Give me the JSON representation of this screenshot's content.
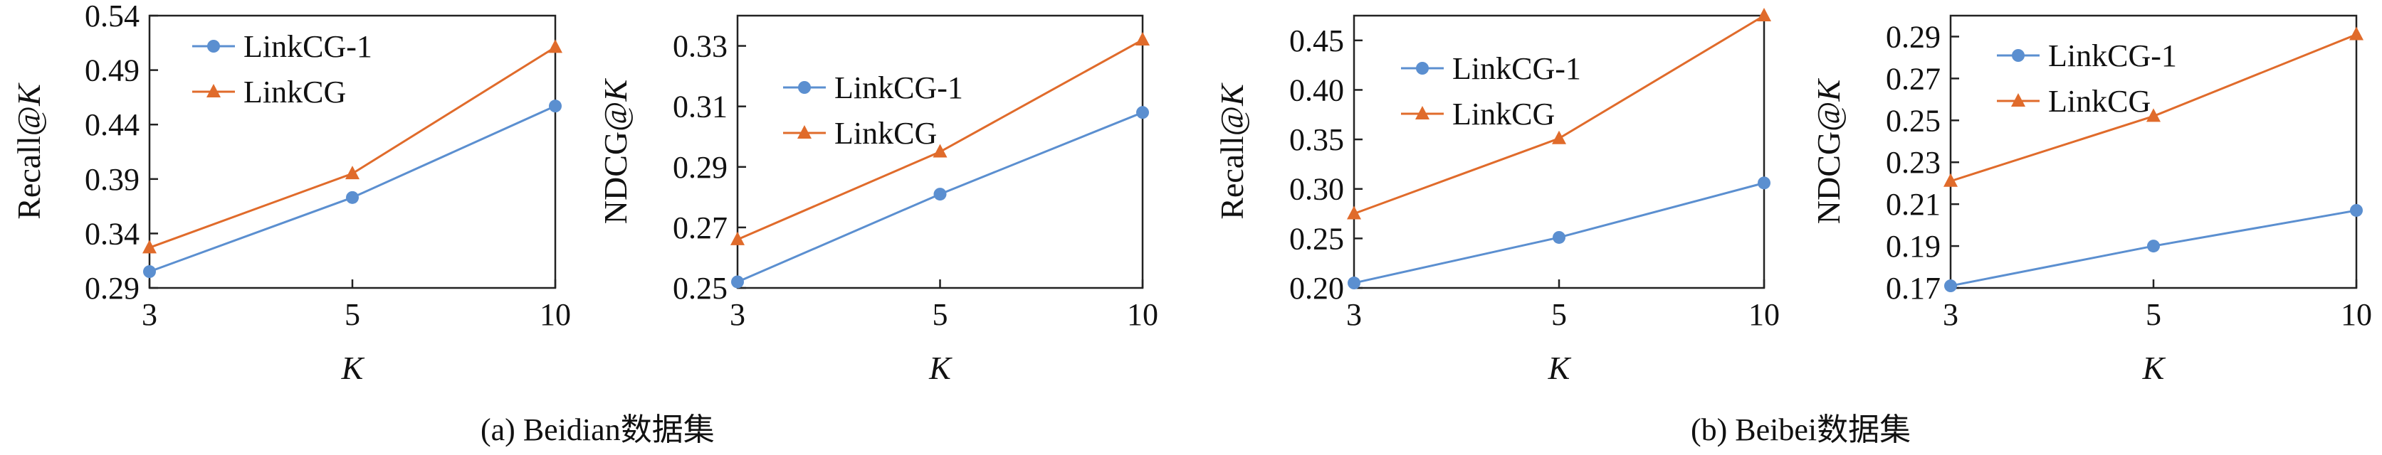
{
  "colors": {
    "series_1": "#5b8fd0",
    "series_2": "#e06b2b",
    "axis": "#222222"
  },
  "captions": {
    "a": "(a)  Beidian数据集",
    "b": "(b)  Beibei数据集"
  },
  "chart_data": [
    {
      "type": "line",
      "x": [
        "3",
        "5",
        "10"
      ],
      "xlabel": "K",
      "ylabel": "Recall@K",
      "ylim": [
        0.29,
        0.54
      ],
      "yticks": [
        "0.29",
        "0.34",
        "0.39",
        "0.44",
        "0.49",
        "0.54"
      ],
      "legend": "top-left",
      "series": [
        {
          "name": "LinkCG-1",
          "marker": "circle",
          "values": [
            0.305,
            0.373,
            0.457
          ]
        },
        {
          "name": "LinkCG",
          "marker": "triangle",
          "values": [
            0.327,
            0.395,
            0.511
          ]
        }
      ]
    },
    {
      "type": "line",
      "x": [
        "3",
        "5",
        "10"
      ],
      "xlabel": "K",
      "ylabel": "NDCG@K",
      "ylim": [
        0.25,
        0.34
      ],
      "yticks": [
        "0.25",
        "0.27",
        "0.29",
        "0.31",
        "0.33"
      ],
      "legend": "center-left",
      "series": [
        {
          "name": "LinkCG-1",
          "marker": "circle",
          "values": [
            0.252,
            0.281,
            0.308
          ]
        },
        {
          "name": "LinkCG",
          "marker": "triangle",
          "values": [
            0.266,
            0.295,
            0.332
          ]
        }
      ]
    },
    {
      "type": "line",
      "x": [
        "3",
        "5",
        "10"
      ],
      "xlabel": "K",
      "ylabel": "Recall@K",
      "ylim": [
        0.2,
        0.475
      ],
      "yticks": [
        "0.20",
        "0.25",
        "0.30",
        "0.35",
        "0.40",
        "0.45"
      ],
      "legend": "top-left",
      "series": [
        {
          "name": "LinkCG-1",
          "marker": "circle",
          "values": [
            0.205,
            0.251,
            0.306
          ]
        },
        {
          "name": "LinkCG",
          "marker": "triangle",
          "values": [
            0.275,
            0.351,
            0.475
          ]
        }
      ]
    },
    {
      "type": "line",
      "x": [
        "3",
        "5",
        "10"
      ],
      "xlabel": "K",
      "ylabel": "NDCG@K",
      "ylim": [
        0.17,
        0.3
      ],
      "yticks": [
        "0.17",
        "0.19",
        "0.21",
        "0.23",
        "0.25",
        "0.27",
        "0.29"
      ],
      "legend": "top-left",
      "series": [
        {
          "name": "LinkCG-1",
          "marker": "circle",
          "values": [
            0.171,
            0.19,
            0.207
          ]
        },
        {
          "name": "LinkCG",
          "marker": "triangle",
          "values": [
            0.221,
            0.252,
            0.291
          ]
        }
      ]
    }
  ]
}
